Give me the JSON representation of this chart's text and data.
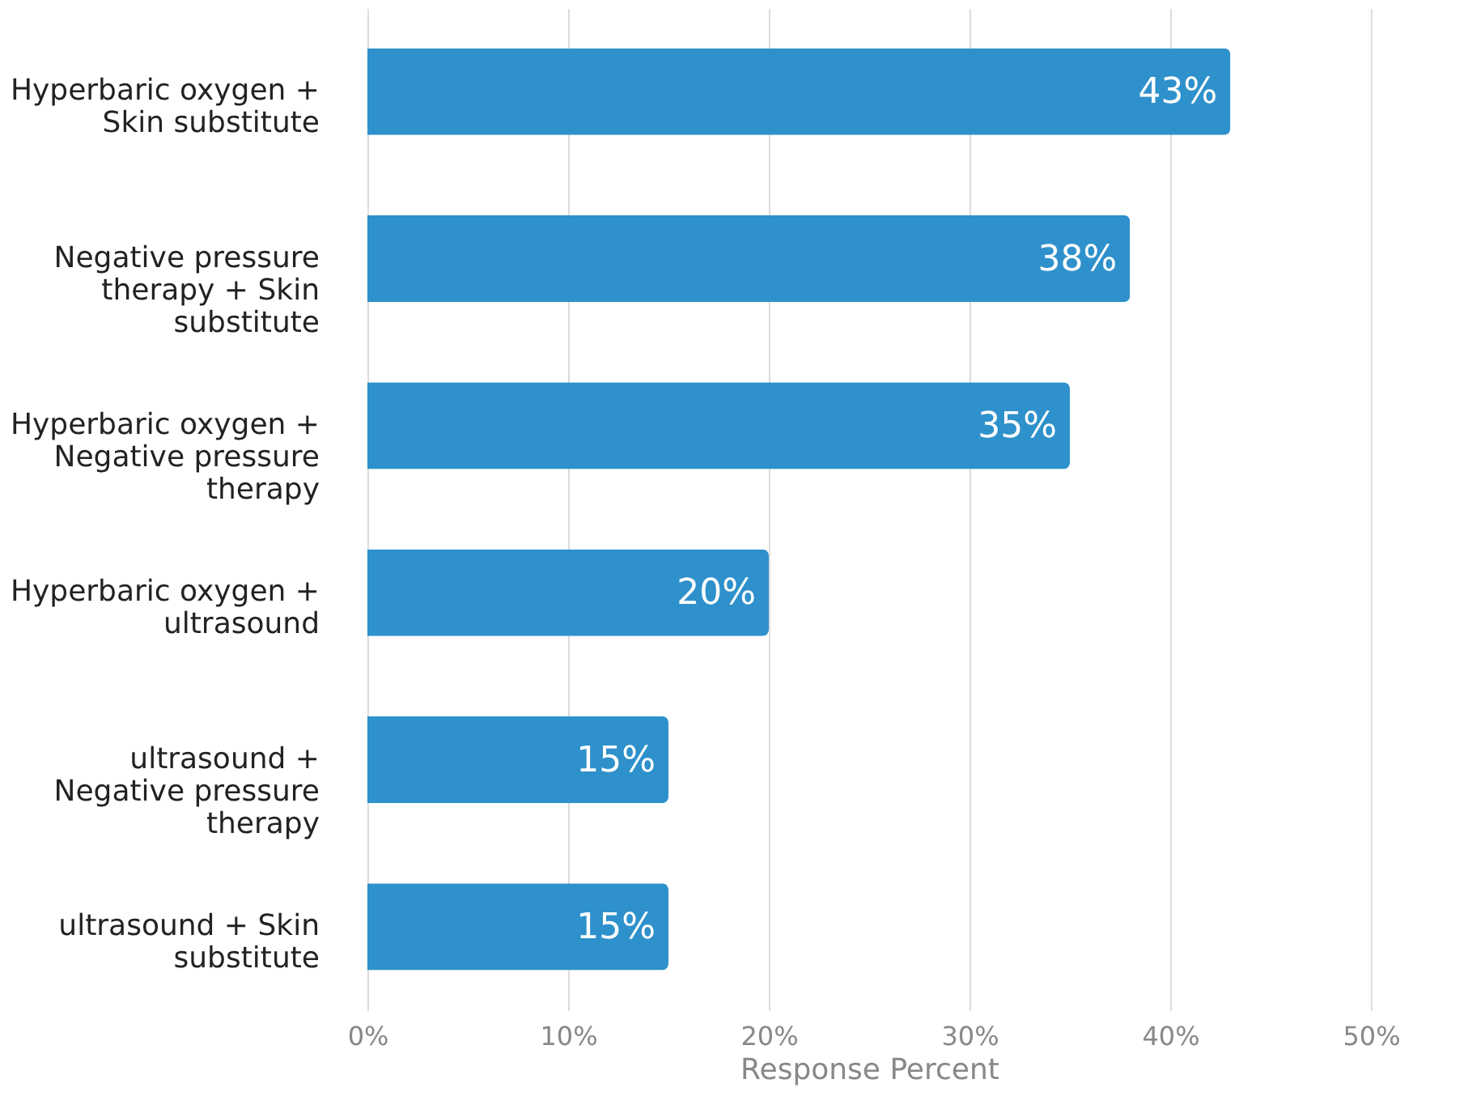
{
  "chart_data": {
    "type": "bar",
    "orientation": "horizontal",
    "xlabel": "Response Percent",
    "categories": [
      "Hyperbaric oxygen + Skin substitute",
      "Negative pressure therapy + Skin substitute",
      "Hyperbaric oxygen + Negative pressure therapy",
      "Hyperbaric oxygen + ultrasound",
      "ultrasound + Negative pressure therapy",
      "ultrasound + Skin substitute"
    ],
    "values": [
      43,
      38,
      35,
      20,
      15,
      15
    ],
    "value_labels": [
      "43%",
      "38%",
      "35%",
      "20%",
      "15%",
      "15%"
    ],
    "color": "#2e91cb",
    "xlim": [
      0,
      50
    ],
    "xticks": [
      {
        "value": 0,
        "label": "0%"
      },
      {
        "value": 10,
        "label": "10%"
      },
      {
        "value": 20,
        "label": "20%"
      },
      {
        "value": 30,
        "label": "30%"
      },
      {
        "value": 40,
        "label": "40%"
      },
      {
        "value": 50,
        "label": "50%"
      }
    ],
    "grid": "x"
  }
}
